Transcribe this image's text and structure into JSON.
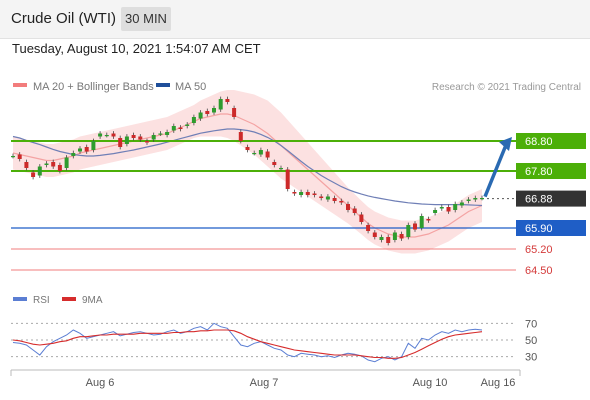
{
  "header": {
    "title": "Crude Oil (WTI)",
    "timeframe": "30 MIN"
  },
  "timestamp": "Tuesday, August 10, 2021 1:54:07 AM CET",
  "legend": {
    "ma20": "MA 20 + Bollinger Bands",
    "ma50": "MA 50",
    "credit": "Research © 2021 Trading Central"
  },
  "rsi_legend": {
    "rsi": "RSI",
    "ma9": "9MA"
  },
  "colors": {
    "resistance": "#4caf08",
    "support": "#1f5ec6",
    "target": "#f27c7c",
    "current": "#333333",
    "ma20": "#f4a3a3",
    "ma50": "#6f7fb6",
    "bollinger": "#fbd7d7",
    "candle_up": "#2e9c2e",
    "candle_down": "#cc2a2a",
    "arrow": "#2a6ab2",
    "rsi": "#5b7ed3",
    "ma9": "#d62c2c"
  },
  "chart_data": {
    "type": "candlestick",
    "y_range": [
      64.0,
      70.0
    ],
    "x_labels": [
      "Aug 6",
      "Aug 7",
      "Aug 10",
      "Aug 16"
    ],
    "levels": [
      {
        "value": 68.8,
        "label": "68.80",
        "kind": "resistance"
      },
      {
        "value": 67.8,
        "label": "67.80",
        "kind": "resistance"
      },
      {
        "value": 66.88,
        "label": "66.88",
        "kind": "current"
      },
      {
        "value": 65.9,
        "label": "65.90",
        "kind": "support"
      },
      {
        "value": 65.2,
        "label": "65.20",
        "kind": "target"
      },
      {
        "value": 64.5,
        "label": "64.50",
        "kind": "target"
      }
    ],
    "candles": [
      [
        68.3,
        68.3
      ],
      [
        68.35,
        68.2
      ],
      [
        68.1,
        67.9
      ],
      [
        67.75,
        67.6
      ],
      [
        67.65,
        67.95
      ],
      [
        68.0,
        68.05
      ],
      [
        68.1,
        67.95
      ],
      [
        68.0,
        67.8
      ],
      [
        67.9,
        68.25
      ],
      [
        68.3,
        68.4
      ],
      [
        68.45,
        68.55
      ],
      [
        68.6,
        68.45
      ],
      [
        68.5,
        68.8
      ],
      [
        68.95,
        69.05
      ],
      [
        69.0,
        69.0
      ],
      [
        69.05,
        68.95
      ],
      [
        68.9,
        68.6
      ],
      [
        68.7,
        68.95
      ],
      [
        69.0,
        68.9
      ],
      [
        68.95,
        68.85
      ],
      [
        68.8,
        68.75
      ],
      [
        68.85,
        69.0
      ],
      [
        69.05,
        69.05
      ],
      [
        69.0,
        69.1
      ],
      [
        69.15,
        69.3
      ],
      [
        69.25,
        69.2
      ],
      [
        69.3,
        69.35
      ],
      [
        69.4,
        69.6
      ],
      [
        69.55,
        69.75
      ],
      [
        69.8,
        69.7
      ],
      [
        69.75,
        69.9
      ],
      [
        69.85,
        70.2
      ],
      [
        70.2,
        70.1
      ],
      [
        69.9,
        69.6
      ],
      [
        69.1,
        68.8
      ],
      [
        68.6,
        68.5
      ],
      [
        68.4,
        68.4
      ],
      [
        68.35,
        68.5
      ],
      [
        68.45,
        68.25
      ],
      [
        68.1,
        68.0
      ],
      [
        67.9,
        67.9
      ],
      [
        67.85,
        67.2
      ],
      [
        67.1,
        67.05
      ],
      [
        67.0,
        67.1
      ],
      [
        67.1,
        67.0
      ],
      [
        67.05,
        67.0
      ],
      [
        66.95,
        66.9
      ],
      [
        66.85,
        66.95
      ],
      [
        66.9,
        66.8
      ],
      [
        66.8,
        66.75
      ],
      [
        66.7,
        66.5
      ],
      [
        66.55,
        66.4
      ],
      [
        66.35,
        66.1
      ],
      [
        66.0,
        65.8
      ],
      [
        65.75,
        65.6
      ],
      [
        65.5,
        65.6
      ],
      [
        65.6,
        65.4
      ],
      [
        65.5,
        65.75
      ],
      [
        65.7,
        65.55
      ],
      [
        65.6,
        66.0
      ],
      [
        66.05,
        65.85
      ],
      [
        65.9,
        66.3
      ],
      [
        66.2,
        66.15
      ],
      [
        66.4,
        66.5
      ],
      [
        66.55,
        66.6
      ],
      [
        66.6,
        66.45
      ],
      [
        66.5,
        66.7
      ],
      [
        66.65,
        66.75
      ],
      [
        66.8,
        66.85
      ],
      [
        66.85,
        66.9
      ],
      [
        66.9,
        66.9
      ]
    ],
    "ma20": [
      68.4,
      68.35,
      68.3,
      68.25,
      68.2,
      68.15,
      68.15,
      68.2,
      68.25,
      68.3,
      68.4,
      68.45,
      68.5,
      68.55,
      68.6,
      68.65,
      68.7,
      68.75,
      68.8,
      68.85,
      68.9,
      68.95,
      69.0,
      69.05,
      69.15,
      69.25,
      69.35,
      69.45,
      69.55,
      69.6,
      69.65,
      69.7,
      69.7,
      69.65,
      69.55,
      69.45,
      69.35,
      69.2,
      69.05,
      68.85,
      68.65,
      68.45,
      68.25,
      68.05,
      67.85,
      67.65,
      67.45,
      67.25,
      67.05,
      66.85,
      66.65,
      66.45,
      66.25,
      66.05,
      65.9,
      65.8,
      65.7,
      65.65,
      65.6,
      65.6,
      65.6,
      65.65,
      65.7,
      65.8,
      65.9,
      66.0,
      66.15,
      66.3,
      66.45,
      66.55,
      66.65
    ],
    "ma50": [
      68.95,
      68.9,
      68.82,
      68.75,
      68.68,
      68.6,
      68.52,
      68.45,
      68.4,
      68.35,
      68.32,
      68.3,
      68.3,
      68.32,
      68.35,
      68.38,
      68.42,
      68.46,
      68.5,
      68.55,
      68.6,
      68.65,
      68.7,
      68.76,
      68.82,
      68.88,
      68.94,
      69.0,
      69.06,
      69.1,
      69.14,
      69.17,
      69.2,
      69.2,
      69.18,
      69.15,
      69.1,
      69.02,
      68.92,
      68.8,
      68.65,
      68.48,
      68.3,
      68.12,
      67.95,
      67.8,
      67.65,
      67.52,
      67.4,
      67.28,
      67.18,
      67.1,
      67.03,
      66.97,
      66.92,
      66.88,
      66.84,
      66.8,
      66.77,
      66.74,
      66.72,
      66.7,
      66.69,
      66.68,
      66.68,
      66.68,
      66.68,
      66.68,
      66.67,
      66.66,
      66.65
    ],
    "bollinger_width": [
      0.55,
      0.55,
      0.55,
      0.55,
      0.55,
      0.55,
      0.55,
      0.55,
      0.55,
      0.55,
      0.55,
      0.55,
      0.55,
      0.55,
      0.55,
      0.55,
      0.55,
      0.55,
      0.55,
      0.55,
      0.55,
      0.55,
      0.55,
      0.55,
      0.55,
      0.55,
      0.55,
      0.55,
      0.6,
      0.65,
      0.7,
      0.75,
      0.8,
      0.85,
      0.9,
      0.95,
      1.0,
      1.05,
      1.1,
      1.1,
      1.1,
      1.05,
      1.0,
      0.95,
      0.9,
      0.85,
      0.8,
      0.75,
      0.7,
      0.65,
      0.6,
      0.58,
      0.56,
      0.55,
      0.55,
      0.55,
      0.55,
      0.55,
      0.55,
      0.55,
      0.55,
      0.55,
      0.55,
      0.55,
      0.55,
      0.55,
      0.55,
      0.55,
      0.55,
      0.55,
      0.55
    ],
    "projection": {
      "from": 66.88,
      "to": 68.8
    },
    "rsi": {
      "levels": [
        70,
        50,
        30
      ],
      "values": [
        47,
        46,
        44,
        38,
        32,
        42,
        48,
        52,
        56,
        62,
        58,
        52,
        54,
        56,
        58,
        60,
        55,
        57,
        59,
        60,
        58,
        56,
        57,
        60,
        62,
        58,
        60,
        64,
        66,
        62,
        70,
        66,
        64,
        54,
        44,
        42,
        46,
        48,
        44,
        40,
        38,
        32,
        30,
        34,
        33,
        32,
        30,
        31,
        29,
        32,
        34,
        33,
        31,
        26,
        24,
        28,
        30,
        26,
        30,
        46,
        40,
        52,
        50,
        56,
        60,
        58,
        62,
        60,
        62,
        63,
        62
      ],
      "ma9": [
        50,
        49,
        47,
        45,
        44,
        45,
        46,
        48,
        49,
        52,
        54,
        54,
        55,
        56,
        56,
        57,
        57,
        57,
        57,
        58,
        58,
        58,
        58,
        58,
        59,
        59,
        60,
        60,
        61,
        61,
        62,
        62,
        62,
        61,
        58,
        54,
        51,
        48,
        46,
        44,
        42,
        40,
        38,
        37,
        36,
        35,
        34,
        33,
        32,
        32,
        32,
        32,
        31,
        30,
        29,
        29,
        28,
        28,
        29,
        32,
        35,
        39,
        43,
        47,
        51,
        54,
        56,
        57,
        58,
        59,
        60
      ]
    }
  }
}
